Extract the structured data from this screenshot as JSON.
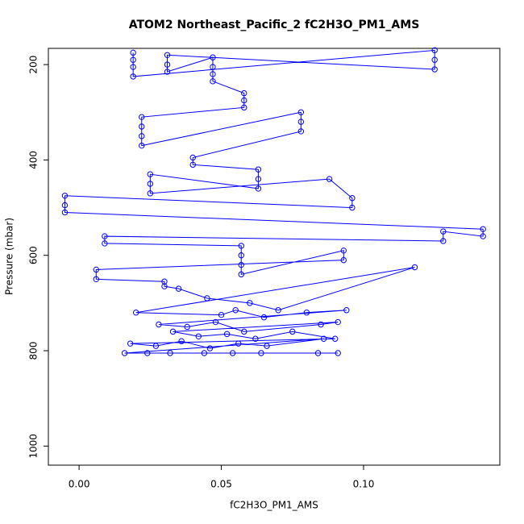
{
  "chart_data": {
    "type": "scatter",
    "connect": true,
    "title": "ATOM2 Northeast_Pacific_2 fC2H3O_PM1_AMS",
    "x_label": "fC2H3O_PM1_AMS",
    "y_label": "Pressure (mbar)",
    "color": "#0000ff",
    "y_inverted": true,
    "xlim": [
      -0.0108,
      0.1479
    ],
    "ylim": [
      166,
      1040
    ],
    "xticks": [
      {
        "value": 0,
        "label": "0.00"
      },
      0.05,
      {
        "value": 0.1,
        "label": "0.10"
      }
    ],
    "yticks": [
      200,
      400,
      600,
      800,
      1000
    ],
    "x": [
      0.019,
      0.019,
      0.019,
      0.019,
      0.125,
      0.125,
      0.125,
      0.031,
      0.031,
      0.031,
      0.047,
      0.047,
      0.047,
      0.047,
      0.058,
      0.058,
      0.058,
      0.022,
      0.022,
      0.022,
      0.022,
      0.078,
      0.078,
      0.078,
      0.04,
      0.04,
      0.063,
      0.063,
      0.063,
      0.025,
      0.025,
      0.025,
      0.088,
      0.096,
      0.096,
      -0.005,
      -0.005,
      -0.005,
      0.142,
      0.142,
      0.128,
      0.128,
      0.009,
      0.009,
      0.057,
      0.057,
      0.057,
      0.057,
      0.093,
      0.093,
      0.006,
      0.006,
      0.03,
      0.03,
      0.035,
      0.045,
      0.06,
      0.07,
      0.118,
      0.02,
      0.05,
      0.055,
      0.065,
      0.08,
      0.094,
      0.028,
      0.038,
      0.048,
      0.058,
      0.085,
      0.091,
      0.033,
      0.042,
      0.052,
      0.062,
      0.075,
      0.09,
      0.018,
      0.027,
      0.036,
      0.046,
      0.056,
      0.066,
      0.086,
      0.016,
      0.024,
      0.032,
      0.044,
      0.054,
      0.064,
      0.084,
      0.091
    ],
    "y": [
      175,
      190,
      205,
      225,
      170,
      190,
      210,
      180,
      200,
      215,
      185,
      205,
      220,
      235,
      260,
      275,
      290,
      310,
      330,
      350,
      370,
      300,
      320,
      340,
      395,
      410,
      420,
      440,
      460,
      430,
      450,
      470,
      440,
      480,
      500,
      475,
      495,
      510,
      545,
      560,
      550,
      570,
      560,
      575,
      580,
      600,
      620,
      640,
      590,
      610,
      630,
      650,
      655,
      665,
      670,
      690,
      700,
      715,
      625,
      720,
      725,
      715,
      730,
      720,
      715,
      745,
      750,
      740,
      760,
      745,
      740,
      760,
      770,
      765,
      775,
      760,
      775,
      785,
      790,
      780,
      795,
      785,
      790,
      775,
      805,
      805,
      805,
      805,
      805,
      805,
      805,
      805
    ]
  }
}
